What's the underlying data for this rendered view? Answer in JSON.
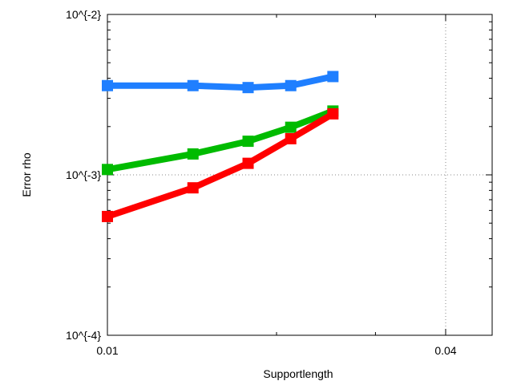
{
  "chart_data": {
    "type": "line",
    "xlabel": "Supportlength",
    "ylabel": "Error rho",
    "x_scale": "log",
    "y_scale": "log",
    "xlim": [
      0.01,
      0.0484
    ],
    "ylim": [
      0.0001,
      0.01
    ],
    "x_ticks": [
      0.01,
      0.04
    ],
    "x_tick_labels": [
      "0.01",
      "0.04"
    ],
    "y_ticks": [
      0.0001,
      0.001,
      0.01
    ],
    "y_tick_labels": [
      "10^{-4}",
      "10^{-3}",
      "10^{-2}"
    ],
    "grid": true,
    "legend": "none",
    "series": [
      {
        "color": "#1f7fff",
        "x": [
          0.01,
          0.0142,
          0.0178,
          0.0212,
          0.0252
        ],
        "y": [
          0.0036,
          0.0036,
          0.0035,
          0.0036,
          0.0041
        ]
      },
      {
        "color": "#00bb00",
        "x": [
          0.01,
          0.0142,
          0.0178,
          0.0212,
          0.0252
        ],
        "y": [
          0.00108,
          0.00135,
          0.00162,
          0.00198,
          0.0025
        ]
      },
      {
        "color": "#ff0000",
        "x": [
          0.01,
          0.0142,
          0.0178,
          0.0212,
          0.0252
        ],
        "y": [
          0.00055,
          0.00083,
          0.00118,
          0.00168,
          0.0024
        ]
      }
    ]
  }
}
